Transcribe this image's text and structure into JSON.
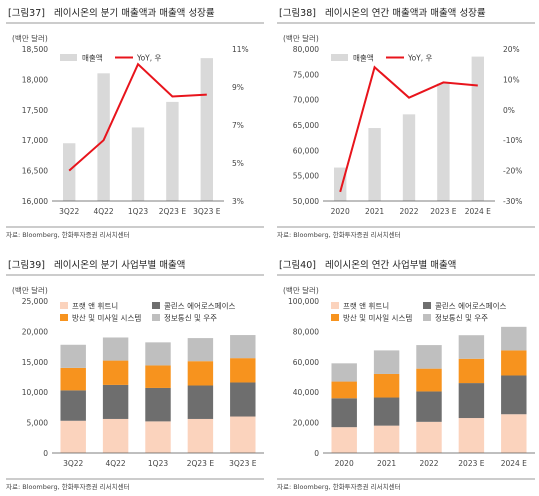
{
  "charts": [
    {
      "figure_label": "[그림37]",
      "title": "레이시온의 분기 매출액과 매출액 성장률",
      "unit": "(백만 달러)",
      "source": "자료: Bloomberg, 한화투자증권 리서치센터",
      "legend": [
        "매출액",
        "YoY, 우"
      ]
    },
    {
      "figure_label": "[그림38]",
      "title": "레이시온의 연간 매출액과 매출액 성장률",
      "unit": "(백만 달러)",
      "source": "자료: Bloomberg, 한화투자증권 리서치센터",
      "legend": [
        "매출액",
        "YoY, 우"
      ]
    },
    {
      "figure_label": "[그림39]",
      "title": "레이시온의 분기 사업부별 매출액",
      "unit": "(백만 달러)",
      "source": "자료: Bloomberg, 한화투자증권 리서치센터",
      "legend": [
        "프랫 앤 휘트니",
        "콜린스 에어로스페이스",
        "방산 및 미사일 시스템",
        "정보통신 및 우주"
      ]
    },
    {
      "figure_label": "[그림40]",
      "title": "레이시온의 연간 사업부별 매출액",
      "unit": "(백만 달러)",
      "source": "자료: Bloomberg, 한화투자증권 리서치센터",
      "legend": [
        "프랫 앤 휘트니",
        "콜린스 에어로스페이스",
        "방산 및 미사일 시스템",
        "정보통신 및 우주"
      ]
    }
  ],
  "colors": {
    "bar": "#d9d9d9",
    "line": "#e8141c",
    "pratt": "#fbd3bd",
    "collins": "#6e6e6e",
    "missile": "#f7931e",
    "info": "#bfbfbf"
  },
  "chart_data": [
    {
      "type": "bar+line",
      "categories": [
        "3Q22",
        "4Q22",
        "1Q23",
        "2Q23 E",
        "3Q23 E"
      ],
      "series": [
        {
          "name": "매출액",
          "type": "bar",
          "axis": "left",
          "values": [
            16950,
            18100,
            17210,
            17630,
            18350
          ]
        },
        {
          "name": "YoY, 우",
          "type": "line",
          "axis": "right",
          "values": [
            4.6,
            6.2,
            10.2,
            8.5,
            8.6
          ]
        }
      ],
      "ylim_left": [
        16000,
        18500
      ],
      "yticks_left": [
        "16,000",
        "16,500",
        "17,000",
        "17,500",
        "18,000",
        "18,500"
      ],
      "ylim_right": [
        3,
        11
      ],
      "yticks_right": [
        "3%",
        "5%",
        "7%",
        "9%",
        "11%"
      ]
    },
    {
      "type": "bar+line",
      "categories": [
        "2020",
        "2021",
        "2022",
        "2023 E",
        "2024 E"
      ],
      "series": [
        {
          "name": "매출액",
          "type": "bar",
          "axis": "left",
          "values": [
            56600,
            64400,
            67100,
            73200,
            78500
          ]
        },
        {
          "name": "YoY, 우",
          "type": "line",
          "axis": "right",
          "values": [
            -27,
            14,
            4,
            9,
            8
          ]
        }
      ],
      "ylim_left": [
        50000,
        80000
      ],
      "yticks_left": [
        "50,000",
        "55,000",
        "60,000",
        "65,000",
        "70,000",
        "75,000",
        "80,000"
      ],
      "ylim_right": [
        -30,
        20
      ],
      "yticks_right": [
        "-30%",
        "-20%",
        "-10%",
        "0%",
        "10%",
        "20%"
      ]
    },
    {
      "type": "stacked-bar",
      "categories": [
        "3Q22",
        "4Q22",
        "1Q23",
        "2Q23 E",
        "3Q23 E"
      ],
      "series": [
        {
          "name": "프랫 앤 휘트니",
          "values": [
            5300,
            5600,
            5200,
            5600,
            6000
          ]
        },
        {
          "name": "콜린스 에어로스페이스",
          "values": [
            5000,
            5600,
            5500,
            5500,
            5600
          ]
        },
        {
          "name": "방산 및 미사일 시스템",
          "values": [
            3700,
            4000,
            3700,
            4000,
            4000
          ]
        },
        {
          "name": "정보통신 및 우주",
          "values": [
            3800,
            3800,
            3800,
            3800,
            3800
          ]
        }
      ],
      "ylim": [
        0,
        25000
      ],
      "yticks": [
        "0",
        "5,000",
        "10,000",
        "15,000",
        "20,000",
        "25,000"
      ]
    },
    {
      "type": "stacked-bar",
      "categories": [
        "2020",
        "2021",
        "2022",
        "2023 E",
        "2024 E"
      ],
      "series": [
        {
          "name": "프랫 앤 휘트니",
          "values": [
            17000,
            18000,
            20500,
            23000,
            25500
          ]
        },
        {
          "name": "콜린스 에어로스페이스",
          "values": [
            19000,
            18500,
            20000,
            23000,
            25500
          ]
        },
        {
          "name": "방산 및 미사일 시스템",
          "values": [
            11000,
            15500,
            15000,
            16000,
            16500
          ]
        },
        {
          "name": "정보통신 및 우주",
          "values": [
            12000,
            15500,
            15500,
            15500,
            15500
          ]
        }
      ],
      "ylim": [
        0,
        100000
      ],
      "yticks": [
        "0",
        "20,000",
        "40,000",
        "60,000",
        "80,000",
        "100,000"
      ]
    }
  ]
}
